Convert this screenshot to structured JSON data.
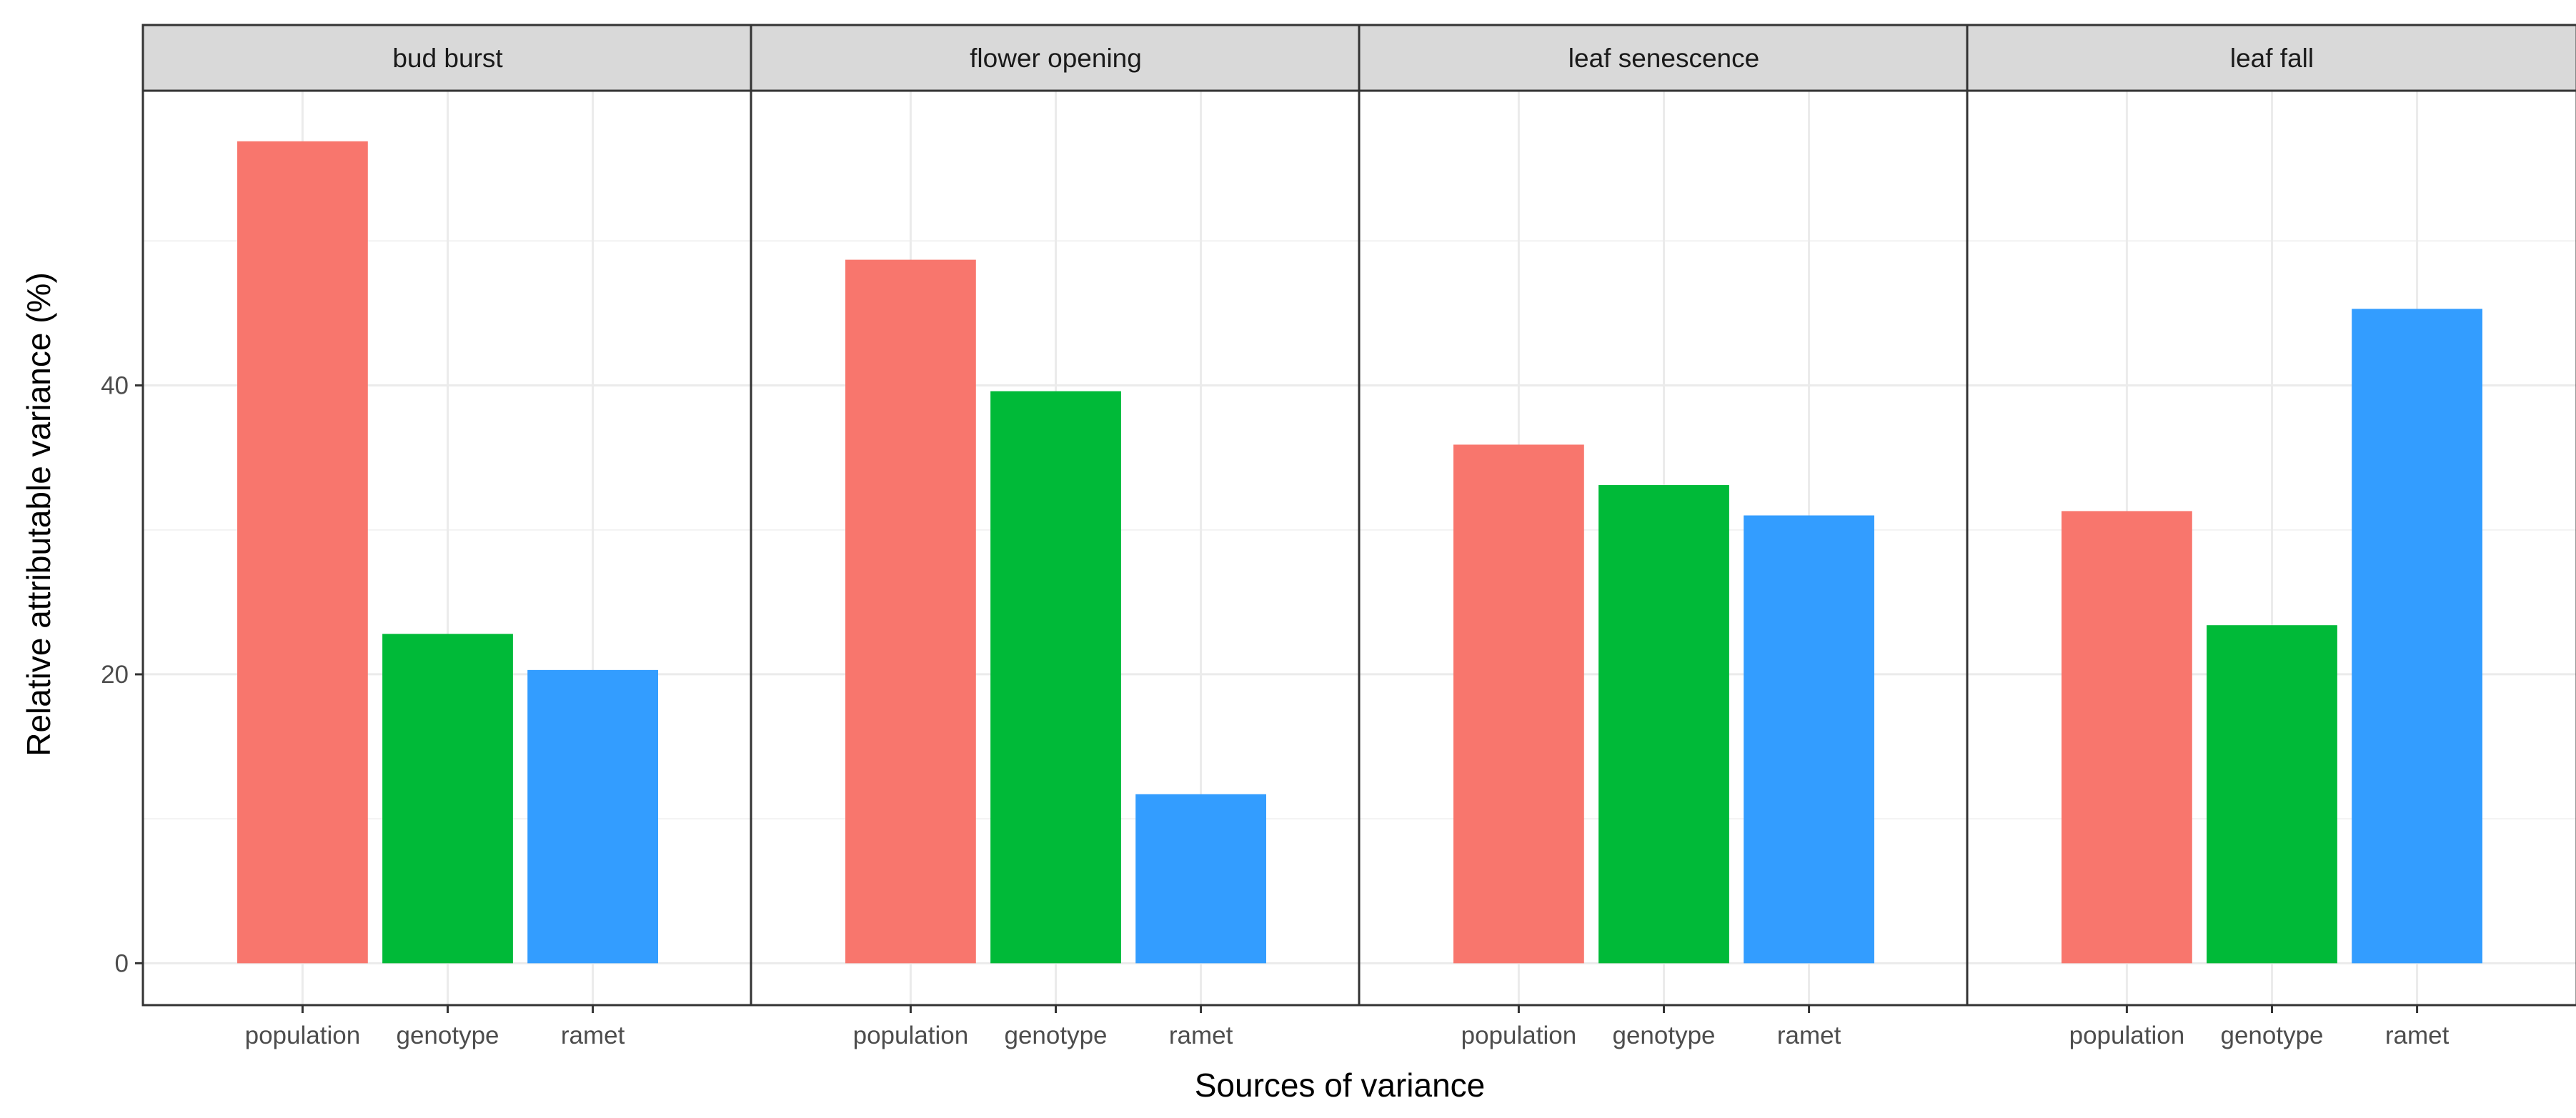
{
  "chart_data": {
    "type": "bar",
    "facet_by": "phenological trait",
    "xlabel": "Sources of variance",
    "ylabel": "Relative attributable variance (%)",
    "ylim": [
      -2.9,
      60.4
    ],
    "y_ticks": [
      0,
      20,
      40
    ],
    "y_minor_gridlines": [
      10,
      30,
      50
    ],
    "grid": true,
    "legend": "none",
    "categories": [
      "population",
      "genotype",
      "ramet"
    ],
    "colors": {
      "population": "#F8766D",
      "genotype": "#00BA38",
      "ramet": "#339DFF"
    },
    "panels": [
      {
        "label": "bud burst",
        "values": [
          56.9,
          22.8,
          20.3
        ]
      },
      {
        "label": "flower opening",
        "values": [
          48.7,
          39.6,
          11.7
        ]
      },
      {
        "label": "leaf senescence",
        "values": [
          35.9,
          33.1,
          31.0
        ]
      },
      {
        "label": "leaf fall",
        "values": [
          31.3,
          23.4,
          45.3
        ]
      }
    ]
  }
}
